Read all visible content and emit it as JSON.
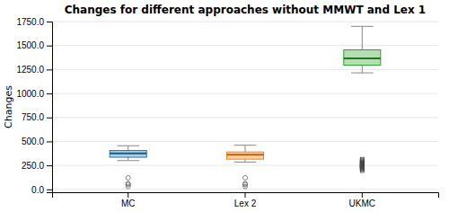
{
  "chart_data": {
    "type": "box",
    "title": "Changes for different approaches without MMWT and Lex 1",
    "ylabel": "Changes",
    "categories": [
      "MC",
      "Lex 2",
      "UKMC"
    ],
    "boxes": [
      {
        "q1": 335,
        "median": 375,
        "q3": 405,
        "whisker_low": 300,
        "whisker_high": 455,
        "outliers": [
          30,
          50,
          60,
          120
        ],
        "marker": "circle"
      },
      {
        "q1": 315,
        "median": 360,
        "q3": 390,
        "whisker_low": 285,
        "whisker_high": 460,
        "outliers": [
          30,
          50,
          60,
          120
        ],
        "marker": "circle"
      },
      {
        "q1": 1295,
        "median": 1365,
        "q3": 1455,
        "whisker_low": 1215,
        "whisker_high": 1700,
        "outliers": [
          195,
          210,
          220,
          225,
          230,
          235,
          240,
          245,
          250,
          255,
          260,
          265,
          270,
          275,
          285,
          295,
          305,
          315
        ],
        "marker": "square"
      }
    ],
    "ylim": [
      -30,
      1750
    ],
    "yticks": [
      {
        "value": 0,
        "label": "0.0"
      },
      {
        "value": 250,
        "label": "250.0"
      },
      {
        "value": 500,
        "label": "500.0"
      },
      {
        "value": 750,
        "label": "750.0"
      },
      {
        "value": 1000,
        "label": "1000.0"
      },
      {
        "value": 1250,
        "label": "1250.0"
      },
      {
        "value": 1500,
        "label": "1500.0"
      },
      {
        "value": 1750,
        "label": "1750.0"
      }
    ],
    "grid": true
  }
}
